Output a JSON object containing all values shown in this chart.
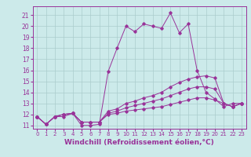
{
  "bg_color": "#cceaea",
  "line_color": "#993399",
  "grid_color": "#aacccc",
  "xlabel": "Windchill (Refroidissement éolien,°C)",
  "xlabel_fontsize": 6.5,
  "tick_fontsize": 5.5,
  "xlim": [
    -0.5,
    23.5
  ],
  "ylim": [
    10.7,
    21.8
  ],
  "yticks": [
    11,
    12,
    13,
    14,
    15,
    16,
    17,
    18,
    19,
    20,
    21
  ],
  "xticks": [
    0,
    1,
    2,
    3,
    4,
    5,
    6,
    7,
    8,
    9,
    10,
    11,
    12,
    13,
    14,
    15,
    16,
    17,
    18,
    19,
    20,
    21,
    22,
    23
  ],
  "series": [
    [
      11.8,
      11.1,
      11.8,
      11.8,
      12.1,
      11.0,
      11.0,
      11.1,
      15.9,
      18.0,
      20.0,
      19.5,
      20.2,
      20.0,
      19.8,
      21.2,
      19.4,
      20.2,
      16.0,
      14.0,
      13.4,
      12.7,
      13.0,
      13.0
    ],
    [
      11.8,
      11.1,
      11.8,
      12.0,
      12.1,
      11.3,
      11.3,
      11.3,
      12.3,
      12.5,
      13.0,
      13.2,
      13.5,
      13.7,
      14.0,
      14.5,
      14.9,
      15.2,
      15.4,
      15.5,
      15.3,
      13.0,
      12.7,
      13.0
    ],
    [
      11.8,
      11.1,
      11.8,
      12.0,
      12.1,
      11.3,
      11.3,
      11.3,
      12.1,
      12.3,
      12.6,
      12.8,
      13.0,
      13.2,
      13.4,
      13.7,
      14.0,
      14.3,
      14.5,
      14.5,
      14.3,
      13.0,
      12.7,
      13.0
    ],
    [
      11.8,
      11.1,
      11.8,
      12.0,
      12.1,
      11.3,
      11.3,
      11.3,
      12.0,
      12.1,
      12.3,
      12.4,
      12.5,
      12.6,
      12.7,
      12.9,
      13.1,
      13.3,
      13.5,
      13.5,
      13.3,
      13.0,
      12.7,
      13.0
    ]
  ]
}
